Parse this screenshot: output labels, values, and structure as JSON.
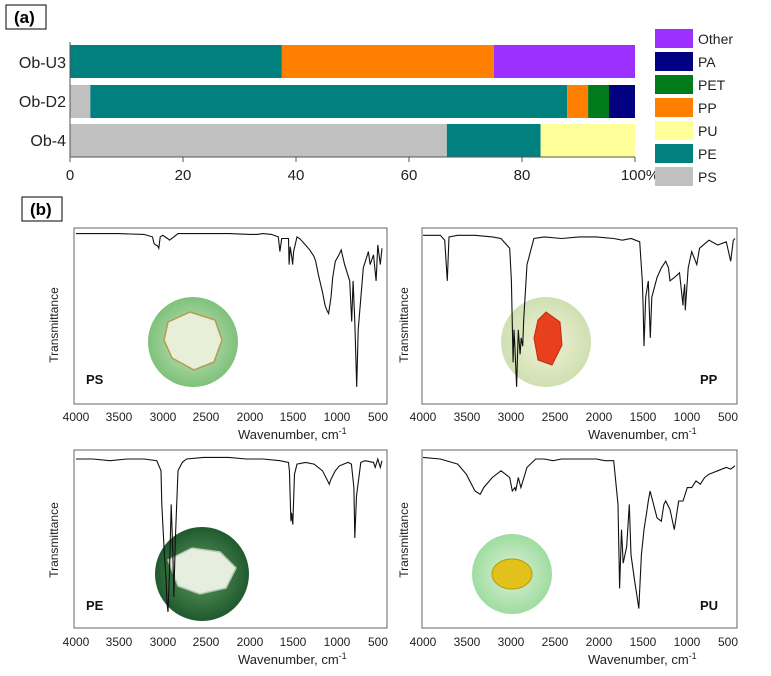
{
  "colors": {
    "Other": "#9b30ff",
    "PA": "#000080",
    "PET": "#007a1a",
    "PP": "#ff8000",
    "PU": "#ffff99",
    "PE": "#00807f",
    "PS": "#c0c0c0"
  },
  "chart_data": [
    {
      "type": "bar",
      "orientation": "horizontal-stacked-100",
      "panel_label": "(a)",
      "categories": [
        "Ob-U3",
        "Ob-D2",
        "Ob-4"
      ],
      "series": [
        {
          "name": "PS",
          "values": [
            0,
            3.6,
            66.7
          ]
        },
        {
          "name": "PE",
          "values": [
            37.5,
            84.4,
            16.6
          ]
        },
        {
          "name": "PU",
          "values": [
            0,
            0,
            16.7
          ]
        },
        {
          "name": "PP",
          "values": [
            37.5,
            3.7,
            0
          ]
        },
        {
          "name": "PET",
          "values": [
            0,
            3.7,
            0
          ]
        },
        {
          "name": "PA",
          "values": [
            0,
            4.6,
            0
          ]
        },
        {
          "name": "Other",
          "values": [
            25.0,
            0,
            0
          ]
        }
      ],
      "legend": [
        "Other",
        "PA",
        "PET",
        "PP",
        "PU",
        "PE",
        "PS"
      ],
      "legend_position": "right",
      "x_ticks": [
        "0",
        "20",
        "40",
        "60",
        "80",
        "100%"
      ],
      "xlim": [
        0,
        100
      ]
    },
    {
      "type": "line",
      "panel_label": "(b)",
      "subplots": [
        {
          "name": "PS",
          "xlabel": "Wavenumber, cm",
          "xlabel_sup": "-1",
          "ylabel": "Transmittance",
          "xlim": [
            4000,
            400
          ],
          "x_ticks": [
            "4000",
            "3500",
            "3000",
            "2500",
            "2000",
            "1500",
            "1000",
            "500"
          ],
          "x": [
            4000,
            3500,
            3200,
            3100,
            3082,
            3060,
            3040,
            3026,
            3010,
            2980,
            2924,
            2900,
            2850,
            2800,
            2600,
            2200,
            1950,
            1870,
            1800,
            1700,
            1620,
            1601,
            1580,
            1500,
            1493,
            1480,
            1460,
            1452,
            1440,
            1400,
            1370,
            1350,
            1300,
            1250,
            1200,
            1180,
            1150,
            1100,
            1070,
            1050,
            1028,
            1000,
            980,
            950,
            906,
            880,
            840,
            780,
            757,
            740,
            720,
            698,
            680,
            620,
            560,
            540,
            500,
            470,
            450,
            420,
            400
          ],
          "y": [
            99,
            99,
            98.5,
            97,
            93,
            92,
            91.5,
            90,
            97,
            98,
            96,
            95,
            97,
            99,
            99,
            99,
            98.5,
            98.5,
            99,
            98.5,
            97,
            88,
            96,
            96,
            80,
            91,
            84,
            80,
            88,
            97,
            96,
            95,
            92,
            89,
            85,
            82,
            74,
            63,
            55,
            52,
            50,
            60,
            72,
            82,
            86,
            89,
            80,
            70,
            45,
            70,
            45,
            5,
            40,
            78,
            88,
            80,
            86,
            70,
            92,
            80,
            90
          ]
        },
        {
          "name": "PP",
          "xlabel": "Wavenumber, cm",
          "xlabel_sup": "-1",
          "ylabel": "Transmittance",
          "xlim": [
            4000,
            400
          ],
          "x_ticks": [
            "4000",
            "3500",
            "3000",
            "2500",
            "2000",
            "1500",
            "1000",
            "500"
          ],
          "x": [
            4000,
            3800,
            3750,
            3720,
            3700,
            3600,
            3400,
            3200,
            3100,
            3000,
            2980,
            2960,
            2950,
            2940,
            2920,
            2900,
            2880,
            2867,
            2850,
            2839,
            2800,
            2720,
            2600,
            2400,
            2200,
            2000,
            1800,
            1700,
            1600,
            1500,
            1470,
            1460,
            1450,
            1430,
            1400,
            1377,
            1360,
            1300,
            1250,
            1200,
            1167,
            1150,
            1100,
            1040,
            1000,
            997,
            980,
            973,
            940,
            900,
            841,
            810,
            700,
            600,
            500,
            450,
            420,
            400
          ],
          "y": [
            98,
            98,
            95,
            70,
            97,
            98,
            98,
            97,
            96,
            90,
            70,
            20,
            40,
            30,
            5,
            40,
            25,
            35,
            30,
            45,
            80,
            96,
            97,
            96,
            97,
            97,
            96,
            95,
            96,
            94,
            70,
            55,
            30,
            60,
            70,
            35,
            60,
            72,
            78,
            82,
            78,
            70,
            72,
            75,
            55,
            60,
            68,
            52,
            78,
            88,
            80,
            90,
            95,
            92,
            94,
            82,
            95,
            96
          ]
        },
        {
          "name": "PE",
          "xlabel": "Wavenumber, cm",
          "xlabel_sup": "-1",
          "ylabel": "Transmittance",
          "xlim": [
            4000,
            400
          ],
          "x_ticks": [
            "4000",
            "3500",
            "3000",
            "2500",
            "2000",
            "1500",
            "1000",
            "500"
          ],
          "x": [
            4000,
            3800,
            3600,
            3400,
            3200,
            3050,
            3000,
            2990,
            2960,
            2940,
            2930,
            2918,
            2900,
            2880,
            2860,
            2850,
            2830,
            2800,
            2750,
            2700,
            2500,
            2200,
            2000,
            1800,
            1600,
            1500,
            1490,
            1472,
            1463,
            1450,
            1430,
            1400,
            1300,
            1200,
            1100,
            1050,
            1020,
            1000,
            950,
            900,
            800,
            760,
            730,
            720,
            700,
            650,
            600,
            500,
            480,
            450,
            420,
            400
          ],
          "y": [
            97,
            97,
            96,
            97,
            97,
            96,
            90,
            70,
            40,
            25,
            12,
            6,
            30,
            70,
            40,
            15,
            50,
            90,
            95,
            97,
            98,
            98,
            97,
            97,
            96,
            95,
            90,
            60,
            65,
            58,
            88,
            94,
            95,
            94,
            90,
            85,
            82,
            85,
            90,
            93,
            95,
            94,
            80,
            50,
            75,
            95,
            96,
            95,
            92,
            97,
            92,
            96
          ]
        },
        {
          "name": "PU",
          "xlabel": "Wavenumber, cm",
          "xlabel_sup": "-1",
          "ylabel": "Transmittance",
          "xlim": [
            4000,
            400
          ],
          "x_ticks": [
            "4000",
            "3500",
            "3000",
            "2500",
            "2000",
            "1500",
            "1000",
            "500"
          ],
          "x": [
            4000,
            3800,
            3600,
            3500,
            3400,
            3340,
            3300,
            3200,
            3100,
            3000,
            2970,
            2940,
            2930,
            2900,
            2870,
            2800,
            2700,
            2600,
            2500,
            2400,
            2300,
            2200,
            2100,
            2000,
            1900,
            1800,
            1750,
            1731,
            1710,
            1690,
            1650,
            1620,
            1600,
            1560,
            1530,
            1510,
            1480,
            1450,
            1420,
            1400,
            1380,
            1300,
            1250,
            1220,
            1200,
            1150,
            1100,
            1080,
            1050,
            1000,
            950,
            900,
            850,
            800,
            750,
            700,
            650,
            600,
            500,
            450,
            400
          ],
          "y": [
            98,
            97,
            94,
            88,
            78,
            76,
            80,
            86,
            90,
            86,
            78,
            80,
            78,
            86,
            80,
            92,
            97,
            97,
            96,
            97,
            97,
            97,
            97,
            97,
            96,
            96,
            70,
            20,
            55,
            35,
            45,
            70,
            40,
            25,
            15,
            8,
            40,
            55,
            65,
            72,
            78,
            62,
            60,
            70,
            72,
            67,
            55,
            62,
            72,
            72,
            80,
            80,
            84,
            82,
            86,
            88,
            89,
            90,
            92,
            91,
            93
          ]
        }
      ]
    }
  ]
}
